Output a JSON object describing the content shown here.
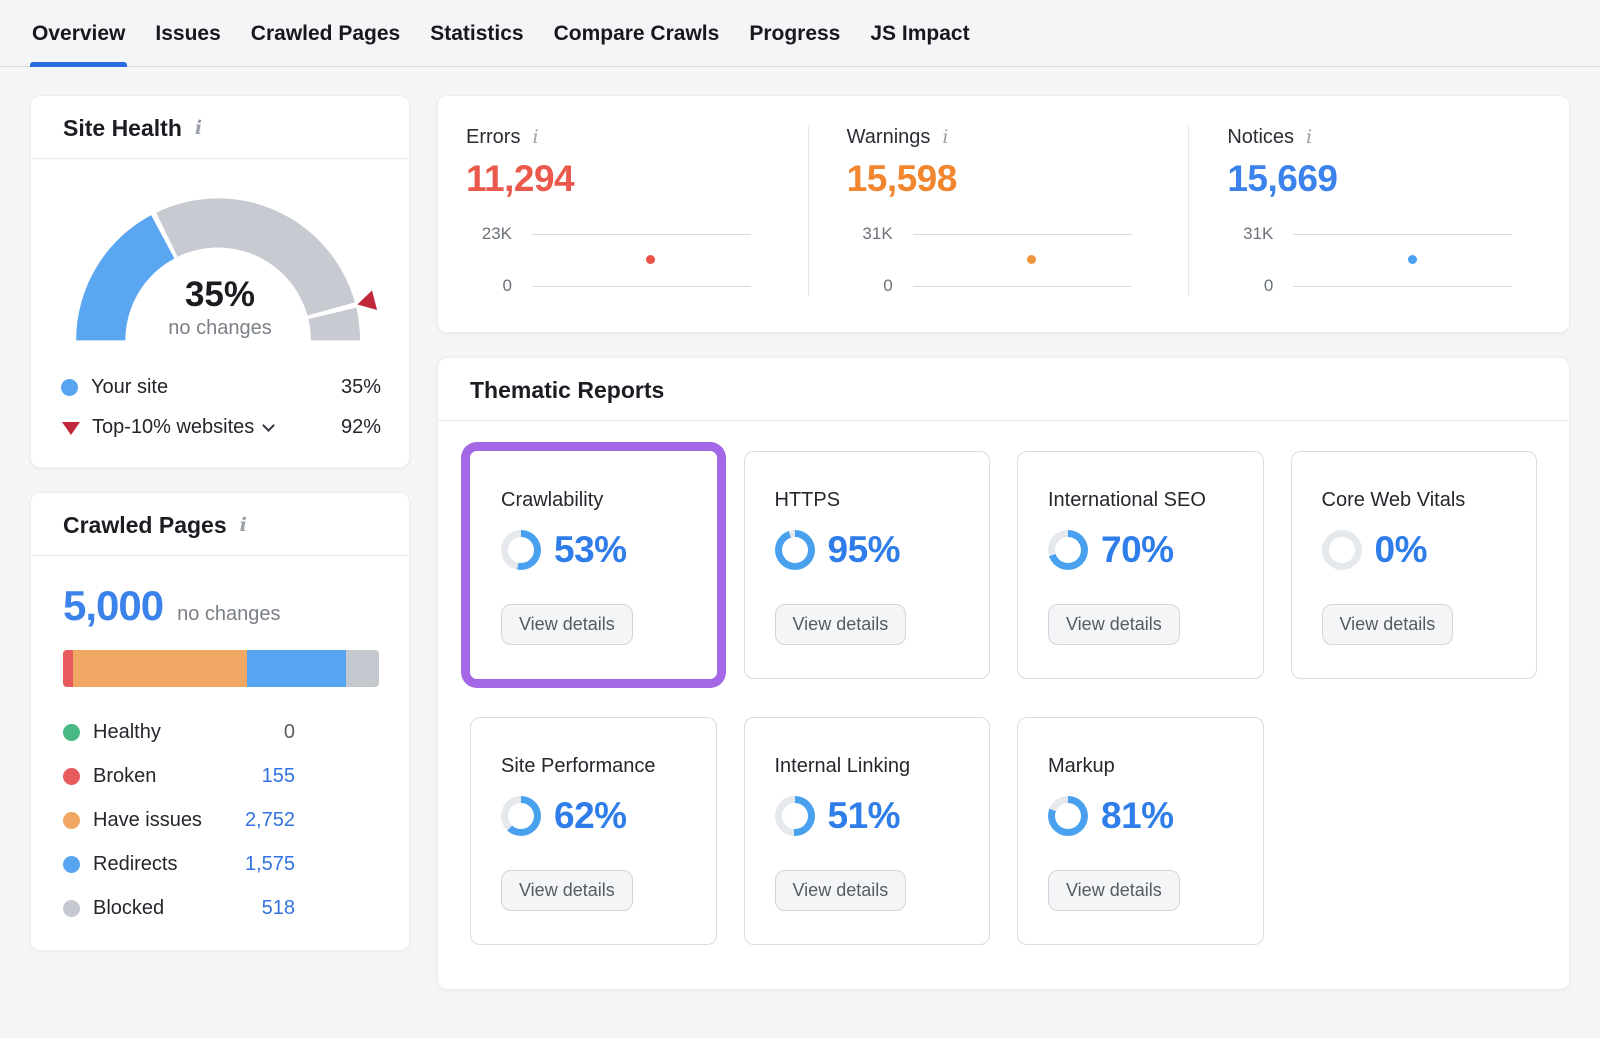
{
  "nav": {
    "active_underline_color": "#2d6ae0",
    "tabs": [
      {
        "label": "Overview",
        "active": true
      },
      {
        "label": "Issues",
        "active": false
      },
      {
        "label": "Crawled Pages",
        "active": false
      },
      {
        "label": "Statistics",
        "active": false
      },
      {
        "label": "Compare Crawls",
        "active": false
      },
      {
        "label": "Progress",
        "active": false
      },
      {
        "label": "JS Impact",
        "active": false
      }
    ]
  },
  "site_health": {
    "title": "Site Health",
    "gauge": {
      "your_site_percent": 35,
      "benchmark_percent": 92,
      "value_label": "35%",
      "delta_label": "no changes",
      "your_site_color": "#5ba6f0",
      "track_color": "#c7cbd1",
      "marker_color": "#c2263a"
    },
    "legend": [
      {
        "label": "Your site",
        "value": "35%",
        "marker": "blue-dot",
        "marker_color": "#57a5f0"
      },
      {
        "label": "Top-10% websites",
        "value": "92%",
        "marker": "red-triangle-down",
        "marker_color": "#c2263a",
        "expandable": true
      }
    ]
  },
  "issues_summary": {
    "items": [
      {
        "label": "Errors",
        "value": "11,294",
        "value_num": 11294,
        "axis_max": "23K",
        "axis_max_num": 23000,
        "axis_min": "0",
        "color": "#eb584c",
        "dot_color": "#ed5147"
      },
      {
        "label": "Warnings",
        "value": "15,598",
        "value_num": 15598,
        "axis_max": "31K",
        "axis_max_num": 31000,
        "axis_min": "0",
        "color": "#f2862e",
        "dot_color": "#f0953f"
      },
      {
        "label": "Notices",
        "value": "15,669",
        "value_num": 15669,
        "axis_max": "31K",
        "axis_max_num": 31000,
        "axis_min": "0",
        "color": "#3b82ec",
        "dot_color": "#4aa0f0"
      }
    ]
  },
  "crawled_pages": {
    "title": "Crawled Pages",
    "total": "5,000",
    "total_num": 5000,
    "total_color": "#3b82ea",
    "delta_label": "no changes",
    "legend": [
      {
        "label": "Healthy",
        "value": "0",
        "count": 0,
        "color": "#48b983",
        "link": false
      },
      {
        "label": "Broken",
        "value": "155",
        "count": 155,
        "color": "#e75b5e",
        "link": true
      },
      {
        "label": "Have issues",
        "value": "2,752",
        "count": 2752,
        "color": "#f0a763",
        "link": true
      },
      {
        "label": "Redirects",
        "value": "1,575",
        "count": 1575,
        "color": "#57a5f0",
        "link": true
      },
      {
        "label": "Blocked",
        "value": "518",
        "count": 518,
        "color": "#c4c9cf",
        "link": true
      }
    ]
  },
  "thematic_reports": {
    "title": "Thematic Reports",
    "view_details_label": "View details",
    "donut_color": "#49a0ee",
    "donut_track_color": "#e5e8ec",
    "percent_text_color": "#2f7de8",
    "highlight_color": "#a468e6",
    "cards": [
      {
        "label": "Crawlability",
        "percent": 53,
        "percent_label": "53%",
        "highlighted": true
      },
      {
        "label": "HTTPS",
        "percent": 95,
        "percent_label": "95%",
        "highlighted": false
      },
      {
        "label": "International SEO",
        "percent": 70,
        "percent_label": "70%",
        "highlighted": false
      },
      {
        "label": "Core Web Vitals",
        "percent": 0,
        "percent_label": "0%",
        "highlighted": false
      },
      {
        "label": "Site Performance",
        "percent": 62,
        "percent_label": "62%",
        "highlighted": false
      },
      {
        "label": "Internal Linking",
        "percent": 51,
        "percent_label": "51%",
        "highlighted": false
      },
      {
        "label": "Markup",
        "percent": 81,
        "percent_label": "81%",
        "highlighted": false
      }
    ]
  }
}
